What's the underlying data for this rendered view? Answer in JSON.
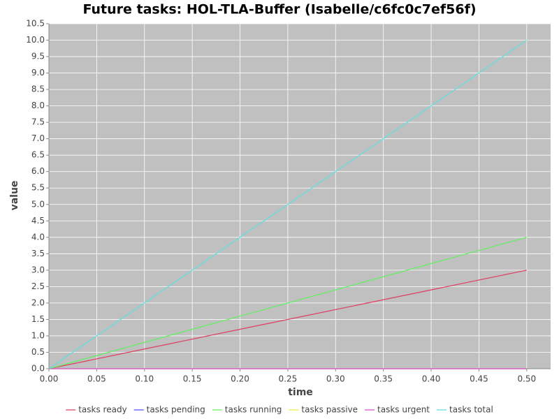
{
  "chart_data": {
    "type": "line",
    "title": "Future tasks: HOL-TLA-Buffer (Isabelle/c6fc0c7ef56f)",
    "x_label": "time",
    "y_label": "value",
    "x": [
      0,
      0.5
    ],
    "series": [
      {
        "name": "tasks ready",
        "color": "#dd4466",
        "values": [
          0,
          3
        ]
      },
      {
        "name": "tasks pending",
        "color": "#5555ff",
        "values": [
          0,
          0
        ]
      },
      {
        "name": "tasks running",
        "color": "#66ee66",
        "values": [
          0,
          4
        ]
      },
      {
        "name": "tasks passive",
        "color": "#eeee44",
        "values": [
          0,
          0
        ]
      },
      {
        "name": "tasks urgent",
        "color": "#dd55cc",
        "values": [
          0,
          0
        ]
      },
      {
        "name": "tasks total",
        "color": "#66dddd",
        "values": [
          0,
          10
        ]
      }
    ],
    "xlim": [
      0,
      0.525
    ],
    "xticks": [
      {
        "value": 0,
        "label": "0.00"
      },
      0.05,
      {
        "value": 0.1,
        "label": "0.10"
      },
      0.15,
      {
        "value": 0.2,
        "label": "0.20"
      },
      0.25,
      {
        "value": 0.3,
        "label": "0.30"
      },
      0.35,
      {
        "value": 0.4,
        "label": "0.40"
      },
      0.45,
      {
        "value": 0.5,
        "label": "0.50"
      }
    ],
    "ylim": [
      0,
      10.5
    ],
    "yticks": [
      {
        "value": 0,
        "label": "0.0"
      },
      0.5,
      {
        "value": 1,
        "label": "1.0"
      },
      1.5,
      {
        "value": 2,
        "label": "2.0"
      },
      2.5,
      {
        "value": 3,
        "label": "3.0"
      },
      3.5,
      {
        "value": 4,
        "label": "4.0"
      },
      4.5,
      {
        "value": 5,
        "label": "5.0"
      },
      5.5,
      {
        "value": 6,
        "label": "6.0"
      },
      6.5,
      {
        "value": 7,
        "label": "7.0"
      },
      7.5,
      {
        "value": 8,
        "label": "8.0"
      },
      8.5,
      {
        "value": 9,
        "label": "9.0"
      },
      9.5,
      {
        "value": 10,
        "label": "10.0"
      },
      10.5
    ],
    "grid": true,
    "legend": "bottom"
  }
}
